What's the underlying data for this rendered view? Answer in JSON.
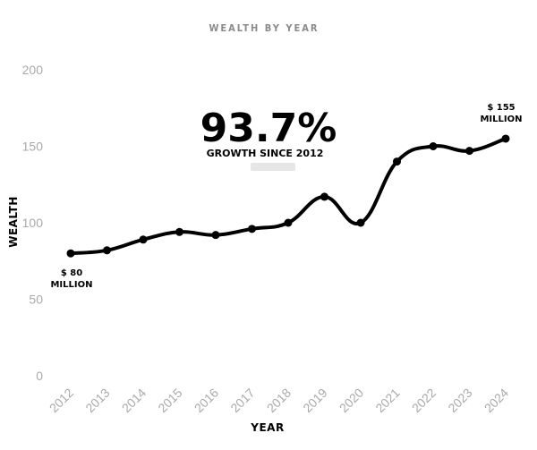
{
  "chart_data": {
    "type": "line",
    "title": "WEALTH BY YEAR",
    "xlabel": "YEAR",
    "ylabel": "WEALTH",
    "x": [
      "2012",
      "2013",
      "2014",
      "2015",
      "2016",
      "2017",
      "2018",
      "2019",
      "2020",
      "2021",
      "2022",
      "2023",
      "2024"
    ],
    "series": [
      {
        "values": [
          80,
          82,
          89,
          94,
          92,
          96,
          100,
          117,
          100,
          140,
          150,
          147,
          155
        ]
      }
    ],
    "ylim": [
      0,
      200
    ],
    "yticks": [
      "0",
      "50",
      "100",
      "150",
      "200"
    ],
    "grid": false,
    "annotations": {
      "headline": "93.7%",
      "headline_sub": "GROWTH SINCE 2012",
      "start_value": "$ 80",
      "start_unit": "MILLION",
      "end_value": "$ 155",
      "end_unit": "MILLION"
    },
    "colors": {
      "line": "#000000",
      "title": "#8a8a8a",
      "ticks": "#aaaaaa"
    }
  }
}
